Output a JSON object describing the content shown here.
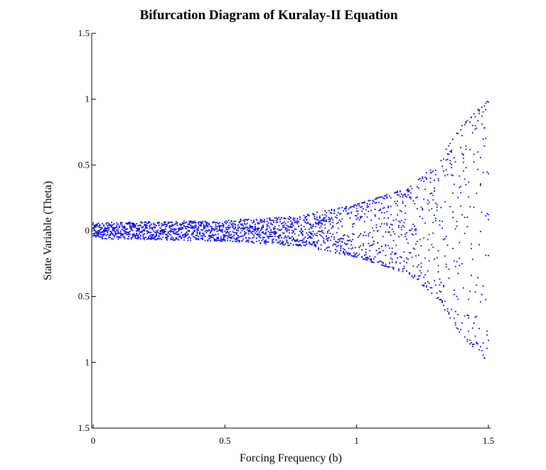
{
  "chart_data": {
    "type": "scatter",
    "title": "Bifurcation Diagram of Kuralay-II Equation",
    "xlabel": "Forcing Frequency (b)",
    "ylabel": "State Variable (Theta)",
    "xlim": [
      0,
      1.5
    ],
    "ylim": [
      -1.5,
      1.5
    ],
    "x_ticks": [
      {
        "value": 0,
        "label": "0"
      },
      {
        "value": 0.5,
        "label": "0.5"
      },
      {
        "value": 1,
        "label": "1"
      },
      {
        "value": 1.5,
        "label": "1.5"
      }
    ],
    "y_ticks": [
      {
        "value": 1.5,
        "label": "1.5"
      },
      {
        "value": 1,
        "label": "1"
      },
      {
        "value": 0.5,
        "label": "0.5"
      },
      {
        "value": 0,
        "label": "0"
      },
      {
        "value": -0.5,
        "label": "0.5"
      },
      {
        "value": -1,
        "label": "1"
      },
      {
        "value": -1.5,
        "label": "1.5"
      }
    ],
    "grid": false,
    "point_color": "#0000ff",
    "envelope": {
      "description_points": [
        {
          "b": 0.0,
          "amplitude": 0.06
        },
        {
          "b": 0.5,
          "amplitude": 0.08
        },
        {
          "b": 0.8,
          "amplitude": 0.12
        },
        {
          "b": 1.0,
          "amplitude": 0.2
        },
        {
          "b": 1.2,
          "amplitude": 0.33
        },
        {
          "b": 1.3,
          "amplitude": 0.5
        },
        {
          "b": 1.4,
          "amplitude": 0.8
        },
        {
          "b": 1.5,
          "amplitude": 1.0
        }
      ]
    }
  }
}
